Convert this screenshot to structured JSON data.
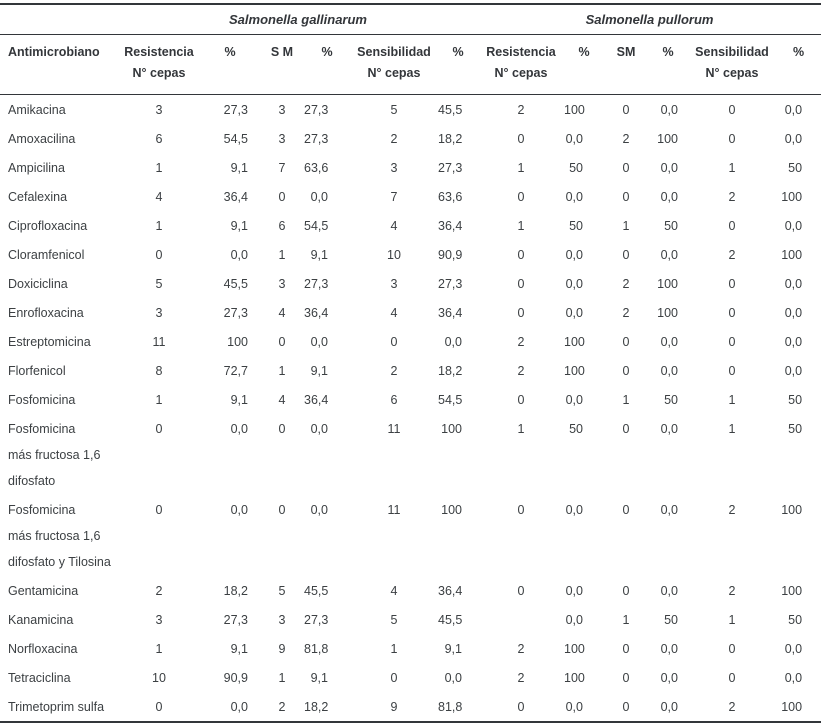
{
  "table": {
    "group_headers": [
      {
        "label": "Salmonella gallinarum"
      },
      {
        "label": "Salmonella pullorum"
      }
    ],
    "columns": [
      {
        "label": "Antimicrobiano",
        "sub": ""
      },
      {
        "label": "Resistencia",
        "sub": "N° cepas"
      },
      {
        "label": "%",
        "sub": ""
      },
      {
        "label": "S M",
        "sub": ""
      },
      {
        "label": "%",
        "sub": ""
      },
      {
        "label": "Sensibilidad",
        "sub": "N° cepas"
      },
      {
        "label": "%",
        "sub": ""
      },
      {
        "label": "Resistencia",
        "sub": "N° cepas"
      },
      {
        "label": "%",
        "sub": ""
      },
      {
        "label": "SM",
        "sub": ""
      },
      {
        "label": "%",
        "sub": ""
      },
      {
        "label": "Sensibilidad",
        "sub": "N° cepas"
      },
      {
        "label": "%",
        "sub": ""
      }
    ],
    "rows": [
      {
        "name": "Amikacina",
        "values": [
          "3",
          "27,3",
          "3",
          "27,3",
          "5",
          "45,5",
          "2",
          "100",
          "0",
          "0,0",
          "0",
          "0,0"
        ]
      },
      {
        "name": "Amoxacilina",
        "values": [
          "6",
          "54,5",
          "3",
          "27,3",
          "2",
          "18,2",
          "0",
          "0,0",
          "2",
          "100",
          "0",
          "0,0"
        ]
      },
      {
        "name": "Ampicilina",
        "values": [
          "1",
          "9,1",
          "7",
          "63,6",
          "3",
          "27,3",
          "1",
          "50",
          "0",
          "0,0",
          "1",
          "50"
        ]
      },
      {
        "name": "Cefalexina",
        "values": [
          "4",
          "36,4",
          "0",
          "0,0",
          "7",
          "63,6",
          "0",
          "0,0",
          "0",
          "0,0",
          "2",
          "100"
        ]
      },
      {
        "name": "Ciprofloxacina",
        "values": [
          "1",
          "9,1",
          "6",
          "54,5",
          "4",
          "36,4",
          "1",
          "50",
          "1",
          "50",
          "0",
          "0,0"
        ]
      },
      {
        "name": "Cloramfenicol",
        "values": [
          "0",
          "0,0",
          "1",
          "9,1",
          "10",
          "90,9",
          "0",
          "0,0",
          "0",
          "0,0",
          "2",
          "100"
        ]
      },
      {
        "name": "Doxiciclina",
        "values": [
          "5",
          "45,5",
          "3",
          "27,3",
          "3",
          "27,3",
          "0",
          "0,0",
          "2",
          "100",
          "0",
          "0,0"
        ]
      },
      {
        "name": "Enrofloxacina",
        "values": [
          "3",
          "27,3",
          "4",
          "36,4",
          "4",
          "36,4",
          "0",
          "0,0",
          "2",
          "100",
          "0",
          "0,0"
        ]
      },
      {
        "name": "Estreptomicina",
        "values": [
          "11",
          "100",
          "0",
          "0,0",
          "0",
          "0,0",
          "2",
          "100",
          "0",
          "0,0",
          "0",
          "0,0"
        ]
      },
      {
        "name": "Florfenicol",
        "values": [
          "8",
          "72,7",
          "1",
          "9,1",
          "2",
          "18,2",
          "2",
          "100",
          "0",
          "0,0",
          "0",
          "0,0"
        ]
      },
      {
        "name": "Fosfomicina",
        "values": [
          "1",
          "9,1",
          "4",
          "36,4",
          "6",
          "54,5",
          "0",
          "0,0",
          "1",
          "50",
          "1",
          "50"
        ]
      },
      {
        "name": "Fosfomicina\nmás fructosa 1,6\ndifosfato",
        "values": [
          "0",
          "0,0",
          "0",
          "0,0",
          "11",
          "100",
          "1",
          "50",
          "0",
          "0,0",
          "1",
          "50"
        ]
      },
      {
        "name": "Fosfomicina\nmás fructosa 1,6\ndifosfato y Tilosina",
        "values": [
          "0",
          "0,0",
          "0",
          "0,0",
          "11",
          "100",
          "0",
          "0,0",
          "0",
          "0,0",
          "2",
          "100"
        ]
      },
      {
        "name": "Gentamicina",
        "values": [
          "2",
          "18,2",
          "5",
          "45,5",
          "4",
          "36,4",
          "0",
          "0,0",
          "0",
          "0,0",
          "2",
          "100"
        ]
      },
      {
        "name": "Kanamicina",
        "values": [
          "3",
          "27,3",
          "3",
          "27,3",
          "5",
          "45,5",
          "",
          "0,0",
          "1",
          "50",
          "1",
          "50"
        ]
      },
      {
        "name": "Norfloxacina",
        "values": [
          "1",
          "9,1",
          "9",
          "81,8",
          "1",
          "9,1",
          "2",
          "100",
          "0",
          "0,0",
          "0",
          "0,0"
        ]
      },
      {
        "name": "Tetraciclina",
        "values": [
          "10",
          "90,9",
          "1",
          "9,1",
          "0",
          "0,0",
          "2",
          "100",
          "0",
          "0,0",
          "0",
          "0,0"
        ]
      },
      {
        "name": "Trimetoprim sulfa",
        "values": [
          "0",
          "0,0",
          "2",
          "18,2",
          "9",
          "81,8",
          "0",
          "0,0",
          "0",
          "0,0",
          "2",
          "100"
        ]
      }
    ]
  }
}
